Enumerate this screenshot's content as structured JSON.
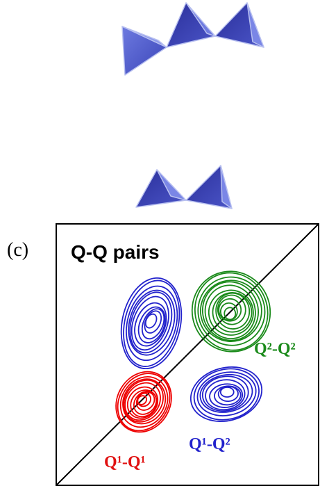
{
  "panel_label": "(c)",
  "title": "Q-Q pairs",
  "annotations": [
    "Q²-Q²",
    "Q¹-Q²",
    "Q¹-Q¹"
  ]
}
